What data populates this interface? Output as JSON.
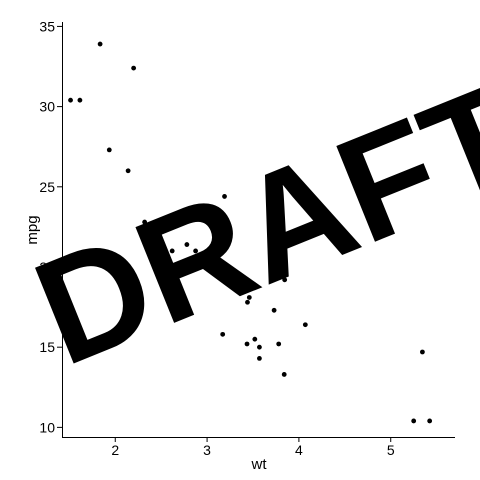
{
  "chart_data": {
    "type": "scatter",
    "title": "",
    "xlabel": "wt",
    "ylabel": "mpg",
    "xlim": [
      1.42,
      5.7
    ],
    "ylim": [
      9.4,
      35.4
    ],
    "x_ticks": [
      2,
      3,
      4,
      5
    ],
    "y_ticks": [
      10,
      15,
      20,
      25,
      30,
      35
    ],
    "grid": false,
    "legend": "none",
    "marker_color": "#000000",
    "watermark": "DRAFT",
    "watermark_color": "#e3e3e3",
    "points": [
      {
        "x": 2.62,
        "y": 21.0
      },
      {
        "x": 2.875,
        "y": 21.0
      },
      {
        "x": 2.32,
        "y": 22.8
      },
      {
        "x": 3.215,
        "y": 21.4
      },
      {
        "x": 3.44,
        "y": 18.7
      },
      {
        "x": 3.46,
        "y": 18.1
      },
      {
        "x": 3.57,
        "y": 14.3
      },
      {
        "x": 3.19,
        "y": 24.4
      },
      {
        "x": 3.15,
        "y": 22.8
      },
      {
        "x": 3.44,
        "y": 19.2
      },
      {
        "x": 3.44,
        "y": 17.8
      },
      {
        "x": 4.07,
        "y": 16.4
      },
      {
        "x": 3.73,
        "y": 17.3
      },
      {
        "x": 3.78,
        "y": 15.2
      },
      {
        "x": 5.25,
        "y": 10.4
      },
      {
        "x": 5.424,
        "y": 10.4
      },
      {
        "x": 5.345,
        "y": 14.7
      },
      {
        "x": 2.2,
        "y": 32.4
      },
      {
        "x": 1.615,
        "y": 30.4
      },
      {
        "x": 1.835,
        "y": 33.9
      },
      {
        "x": 2.465,
        "y": 21.5
      },
      {
        "x": 3.52,
        "y": 15.5
      },
      {
        "x": 3.435,
        "y": 15.2
      },
      {
        "x": 3.84,
        "y": 13.3
      },
      {
        "x": 3.845,
        "y": 19.2
      },
      {
        "x": 1.935,
        "y": 27.3
      },
      {
        "x": 2.14,
        "y": 26.0
      },
      {
        "x": 1.513,
        "y": 30.4
      },
      {
        "x": 3.17,
        "y": 15.8
      },
      {
        "x": 2.77,
        "y": 19.7
      },
      {
        "x": 3.57,
        "y": 15.0
      },
      {
        "x": 2.78,
        "y": 21.4
      }
    ]
  }
}
